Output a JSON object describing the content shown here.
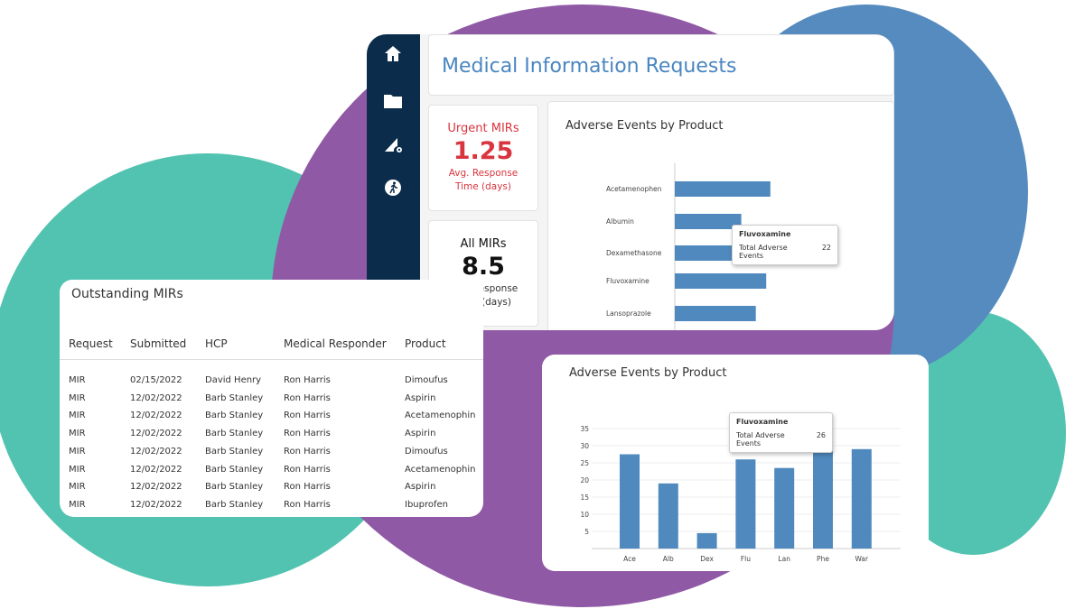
{
  "colors": {
    "teal": "#52c3b0",
    "purple": "#9059a6",
    "blue": "#558bbf",
    "navy": "#0b2d4b",
    "bar": "#4f89bd",
    "urgent": "#d9353f"
  },
  "dashboard": {
    "title": "Medical Information Requests",
    "sidebar": {
      "icons": [
        "home-icon",
        "folder-icon",
        "settings-ruler-icon",
        "running-person-icon"
      ]
    },
    "kpis": [
      {
        "title": "Urgent MIRs",
        "value": "1.25",
        "subtitle": "Avg. Response Time (days)"
      },
      {
        "title": "All MIRs",
        "value": "8.5",
        "subtitle": "Avg. Response Time (days)"
      }
    ]
  },
  "table": {
    "title": "Outstanding MIRs",
    "columns": [
      "Request",
      "Submitted",
      "HCP",
      "Medical Responder",
      "Product"
    ],
    "rows": [
      [
        "MIR",
        "02/15/2022",
        "David Henry",
        "Ron Harris",
        "Dimoufus"
      ],
      [
        "MIR",
        "12/02/2022",
        "Barb Stanley",
        "Ron Harris",
        "Aspirin"
      ],
      [
        "MIR",
        "12/02/2022",
        "Barb Stanley",
        "Ron Harris",
        "Acetamenophin"
      ],
      [
        "MIR",
        "12/02/2022",
        "Barb Stanley",
        "Ron Harris",
        "Aspirin"
      ],
      [
        "MIR",
        "12/02/2022",
        "Barb Stanley",
        "Ron Harris",
        "Dimoufus"
      ],
      [
        "MIR",
        "12/02/2022",
        "Barb Stanley",
        "Ron Harris",
        "Acetamenophin"
      ],
      [
        "MIR",
        "12/02/2022",
        "Barb Stanley",
        "Ron Harris",
        "Aspirin"
      ],
      [
        "MIR",
        "12/02/2022",
        "Barb Stanley",
        "Ron Harris",
        "Ibuprofen"
      ]
    ]
  },
  "chart_data": [
    {
      "type": "bar",
      "orientation": "horizontal",
      "title": "Adverse Events by Product",
      "categories": [
        "Acetamenophen",
        "Albumin",
        "Dexamethasone",
        "Fluvoxamine",
        "Lansoprazole"
      ],
      "values": [
        23,
        16,
        19,
        22,
        19.5
      ],
      "tooltip": {
        "category": "Fluvoxamine",
        "label": "Total Adverse Events",
        "value": "22"
      }
    },
    {
      "type": "bar",
      "title": "Adverse Events by Product",
      "categories": [
        "Ace",
        "Alb",
        "Dex",
        "Flu",
        "Lan",
        "Phe",
        "War"
      ],
      "values": [
        27.5,
        19,
        4.5,
        26,
        23.5,
        30,
        29
      ],
      "yticks": [
        "5",
        "10",
        "15",
        "20",
        "25",
        "30",
        "35"
      ],
      "ylim": [
        0,
        35
      ],
      "grid": true,
      "tooltip": {
        "category": "Fluvoxamine",
        "label": "Total Adverse Events",
        "value": "26"
      }
    }
  ]
}
